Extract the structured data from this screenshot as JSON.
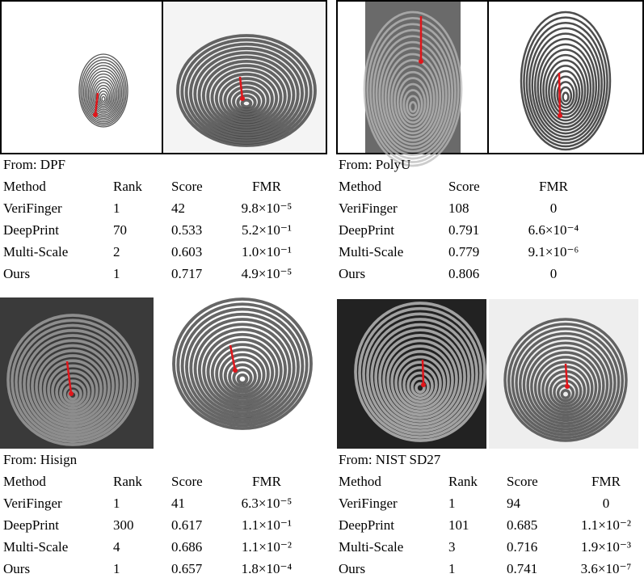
{
  "panels": [
    {
      "caption": "From: DPF",
      "table": {
        "header": [
          "Method",
          "Rank",
          "Score",
          "FMR"
        ],
        "rows": [
          [
            "VeriFinger",
            "1",
            "42",
            "9.8×10⁻⁵"
          ],
          [
            "DeepPrint",
            "70",
            "0.533",
            "5.2×10⁻¹"
          ],
          [
            "Multi-Scale",
            "2",
            "0.603",
            "1.0×10⁻¹"
          ],
          [
            "Ours",
            "1",
            "0.717",
            "4.9×10⁻⁵"
          ]
        ]
      }
    },
    {
      "caption": "From: PolyU",
      "table": {
        "header": [
          "Method",
          "Score",
          "FMR"
        ],
        "rows": [
          [
            "VeriFinger",
            "108",
            "0"
          ],
          [
            "DeepPrint",
            "0.791",
            "6.6×10⁻⁴"
          ],
          [
            "Multi-Scale",
            "0.779",
            "9.1×10⁻⁶"
          ],
          [
            "Ours",
            "0.806",
            "0"
          ]
        ]
      }
    },
    {
      "caption": "From: Hisign",
      "table": {
        "header": [
          "Method",
          "Rank",
          "Score",
          "FMR"
        ],
        "rows": [
          [
            "VeriFinger",
            "1",
            "41",
            "6.3×10⁻⁵"
          ],
          [
            "DeepPrint",
            "300",
            "0.617",
            "1.1×10⁻¹"
          ],
          [
            "Multi-Scale",
            "4",
            "0.686",
            "1.1×10⁻²"
          ],
          [
            "Ours",
            "1",
            "0.657",
            "1.8×10⁻⁴"
          ]
        ]
      }
    },
    {
      "caption": "From: NIST SD27",
      "table": {
        "header": [
          "Method",
          "Rank",
          "Score",
          "FMR"
        ],
        "rows": [
          [
            "VeriFinger",
            "1",
            "94",
            "0"
          ],
          [
            "DeepPrint",
            "101",
            "0.685",
            "1.1×10⁻²"
          ],
          [
            "Multi-Scale",
            "3",
            "0.716",
            "1.9×10⁻³"
          ],
          [
            "Ours",
            "1",
            "0.741",
            "3.6×10⁻⁷"
          ]
        ]
      }
    }
  ]
}
